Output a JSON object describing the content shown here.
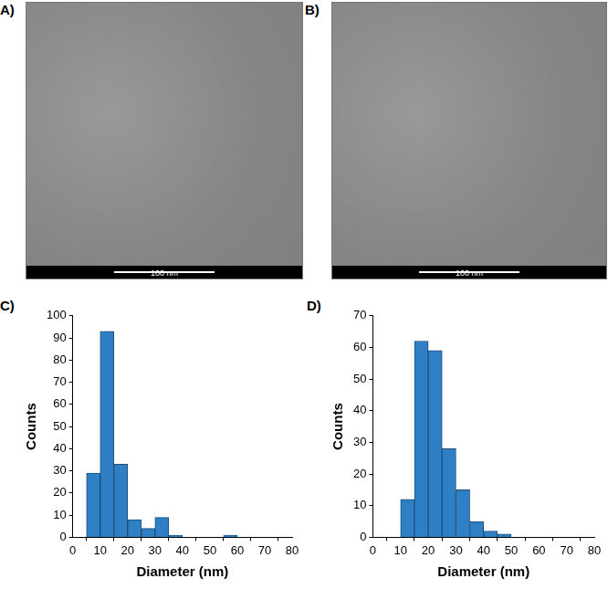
{
  "images": [
    {
      "label": "A)",
      "scale_bar": "100 nm"
    },
    {
      "label": "B)",
      "scale_bar": "100 nm"
    }
  ],
  "chart_data": [
    {
      "label": "C)",
      "type": "histogram",
      "x_label": "Diameter (nm)",
      "y_label": "Counts",
      "bins": [
        5,
        10,
        15,
        20,
        25,
        30,
        35,
        40,
        45,
        50,
        55,
        60
      ],
      "values": [
        29,
        93,
        33,
        8,
        4,
        9,
        1,
        0,
        0,
        0,
        1
      ],
      "color": "#2e7fc4",
      "xlim": [
        0,
        80
      ],
      "xticks": [
        0,
        10,
        20,
        30,
        40,
        50,
        60,
        70,
        80
      ],
      "ylim": [
        0,
        100
      ],
      "yticks": [
        0,
        10,
        20,
        30,
        40,
        50,
        60,
        70,
        80,
        90,
        100
      ],
      "grid": false
    },
    {
      "label": "D)",
      "type": "histogram",
      "x_label": "Diameter (nm)",
      "y_label": "Counts",
      "bins": [
        10,
        15,
        20,
        25,
        30,
        35,
        40,
        45,
        50
      ],
      "values": [
        12,
        62,
        59,
        28,
        15,
        5,
        2,
        1
      ],
      "color": "#2e7fc4",
      "xlim": [
        0,
        80
      ],
      "xticks": [
        0,
        10,
        20,
        30,
        40,
        50,
        60,
        70,
        80
      ],
      "ylim": [
        0,
        70
      ],
      "yticks": [
        0,
        10,
        20,
        30,
        40,
        50,
        60,
        70
      ],
      "grid": false
    }
  ]
}
